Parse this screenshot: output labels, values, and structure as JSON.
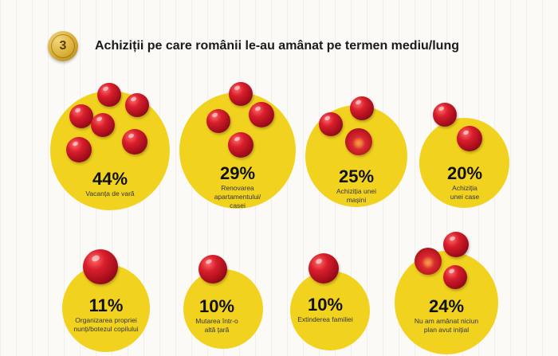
{
  "header": {
    "number": "3",
    "title": "Achiziții pe care românii le-au amânat pe termen mediu/lung"
  },
  "items": [
    {
      "percent": "44%",
      "label": "Vacanța de vară"
    },
    {
      "percent": "29%",
      "label": "Renovarea\napartamentului/\ncasei"
    },
    {
      "percent": "25%",
      "label": "Achiziția unei\nmașini"
    },
    {
      "percent": "20%",
      "label": "Achiziția\nunei case"
    },
    {
      "percent": "11%",
      "label": "Organizarea propriei\nnunți/botezul copilului"
    },
    {
      "percent": "10%",
      "label": "Mutarea într-o\naltă țară"
    },
    {
      "percent": "10%",
      "label": "Extinderea familiei"
    },
    {
      "percent": "24%",
      "label": "Nu am amânat niciun\nplan avut inițial"
    }
  ],
  "colors": {
    "circle": "#f1d31f",
    "cherry": "#c8102e",
    "medal": "#d9ae35"
  }
}
